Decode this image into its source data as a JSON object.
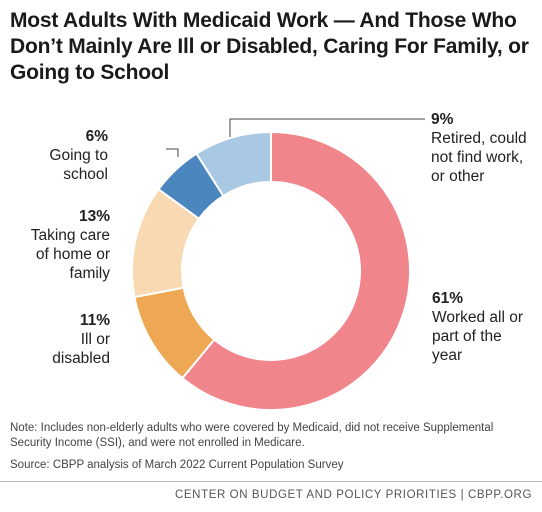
{
  "header": {
    "title": "Most Adults With Medicaid Work — And Those Who Don’t Mainly Are Ill or Disabled, Caring For Family, or Going to School"
  },
  "chart_data": {
    "type": "pie",
    "donut": true,
    "unit": "%",
    "slices": [
      {
        "label": "Worked all or part of the year",
        "value": 61,
        "value_label": "61%",
        "color": "#f0858b"
      },
      {
        "label": "Ill or disabled",
        "value": 11,
        "value_label": "11%",
        "color": "#eea752"
      },
      {
        "label": "Taking care of home or family",
        "value": 13,
        "value_label": "13%",
        "color": "#f8d9b2"
      },
      {
        "label": "Going to school",
        "value": 6,
        "value_label": "6%",
        "color": "#4b86bf"
      },
      {
        "label": "Retired, could not find work, or other",
        "value": 9,
        "value_label": "9%",
        "color": "#a9c8e3"
      }
    ]
  },
  "notes": {
    "note": "Note: Includes non-elderly adults who were covered by Medicaid, did not receive Supplemental Security Income (SSI), and were not enrolled in Medicare.",
    "source": "Source: CBPP analysis of March 2022 Current Population Survey"
  },
  "footer": {
    "org": "CENTER ON BUDGET AND POLICY PRIORITIES | CBPP.ORG"
  }
}
